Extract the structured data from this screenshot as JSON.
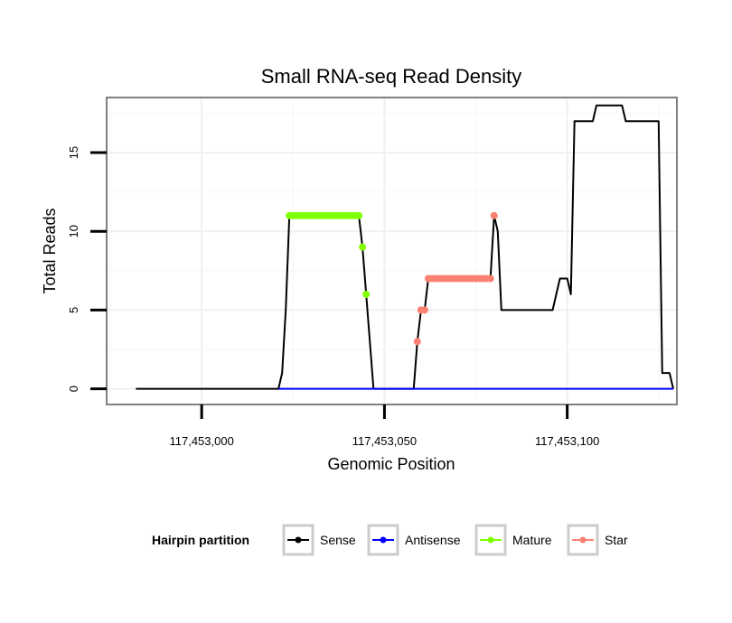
{
  "chart_data": {
    "type": "line",
    "title": "Small RNA-seq Read Density",
    "xlabel": "Genomic Position",
    "ylabel": "Total Reads",
    "xlim": [
      117452974,
      117453130
    ],
    "ylim": [
      -1,
      18.5
    ],
    "x_ticks": [
      117453000,
      117453050,
      117453100
    ],
    "x_tick_labels": [
      "117,453,000",
      "117,453,050",
      "117,453,100"
    ],
    "y_ticks": [
      0,
      5,
      10,
      15
    ],
    "y_tick_labels": [
      "0",
      "5",
      "10",
      "15"
    ],
    "grid": true,
    "legend": {
      "title": "Hairpin partition",
      "position": "bottom",
      "entries": [
        {
          "label": "Sense",
          "color": "#000000"
        },
        {
          "label": "Antisense",
          "color": "#0000ff"
        },
        {
          "label": "Mature",
          "color": "#7fff00"
        },
        {
          "label": "Star",
          "color": "#fa8072"
        }
      ]
    },
    "series": [
      {
        "name": "Sense",
        "color": "#000000",
        "style": "line",
        "points": [
          [
            117452982,
            0
          ],
          [
            117453021,
            0
          ],
          [
            117453022,
            1
          ],
          [
            117453023,
            5
          ],
          [
            117453024,
            11
          ],
          [
            117453043,
            11
          ],
          [
            117453044,
            9
          ],
          [
            117453045,
            6
          ],
          [
            117453047,
            0
          ],
          [
            117453058,
            0
          ],
          [
            117453059,
            3
          ],
          [
            117453060,
            5
          ],
          [
            117453061,
            5
          ],
          [
            117453062,
            7
          ],
          [
            117453079,
            7
          ],
          [
            117453080,
            11
          ],
          [
            117453081,
            10
          ],
          [
            117453082,
            5
          ],
          [
            117453096,
            5
          ],
          [
            117453098,
            7
          ],
          [
            117453100,
            7
          ],
          [
            117453101,
            6
          ],
          [
            117453102,
            17
          ],
          [
            117453107,
            17
          ],
          [
            117453108,
            18
          ],
          [
            117453115,
            18
          ],
          [
            117453116,
            17
          ],
          [
            117453125,
            17
          ],
          [
            117453126,
            1
          ],
          [
            117453128,
            1
          ],
          [
            117453129,
            0
          ]
        ]
      },
      {
        "name": "Antisense",
        "color": "#0000ff",
        "style": "line",
        "points": [
          [
            117453021,
            0
          ],
          [
            117453129,
            0
          ]
        ]
      },
      {
        "name": "Mature",
        "color": "#7fff00",
        "style": "points",
        "points": [
          [
            117453024,
            11
          ],
          [
            117453025,
            11
          ],
          [
            117453026,
            11
          ],
          [
            117453027,
            11
          ],
          [
            117453028,
            11
          ],
          [
            117453029,
            11
          ],
          [
            117453030,
            11
          ],
          [
            117453031,
            11
          ],
          [
            117453032,
            11
          ],
          [
            117453033,
            11
          ],
          [
            117453034,
            11
          ],
          [
            117453035,
            11
          ],
          [
            117453036,
            11
          ],
          [
            117453037,
            11
          ],
          [
            117453038,
            11
          ],
          [
            117453039,
            11
          ],
          [
            117453040,
            11
          ],
          [
            117453041,
            11
          ],
          [
            117453042,
            11
          ],
          [
            117453043,
            11
          ],
          [
            117453044,
            9
          ],
          [
            117453045,
            6
          ]
        ]
      },
      {
        "name": "Star",
        "color": "#fa8072",
        "style": "points",
        "points": [
          [
            117453059,
            3
          ],
          [
            117453060,
            5
          ],
          [
            117453061,
            5
          ],
          [
            117453062,
            7
          ],
          [
            117453063,
            7
          ],
          [
            117453064,
            7
          ],
          [
            117453065,
            7
          ],
          [
            117453066,
            7
          ],
          [
            117453067,
            7
          ],
          [
            117453068,
            7
          ],
          [
            117453069,
            7
          ],
          [
            117453070,
            7
          ],
          [
            117453071,
            7
          ],
          [
            117453072,
            7
          ],
          [
            117453073,
            7
          ],
          [
            117453074,
            7
          ],
          [
            117453075,
            7
          ],
          [
            117453076,
            7
          ],
          [
            117453077,
            7
          ],
          [
            117453078,
            7
          ],
          [
            117453079,
            7
          ],
          [
            117453080,
            11
          ]
        ]
      }
    ]
  }
}
